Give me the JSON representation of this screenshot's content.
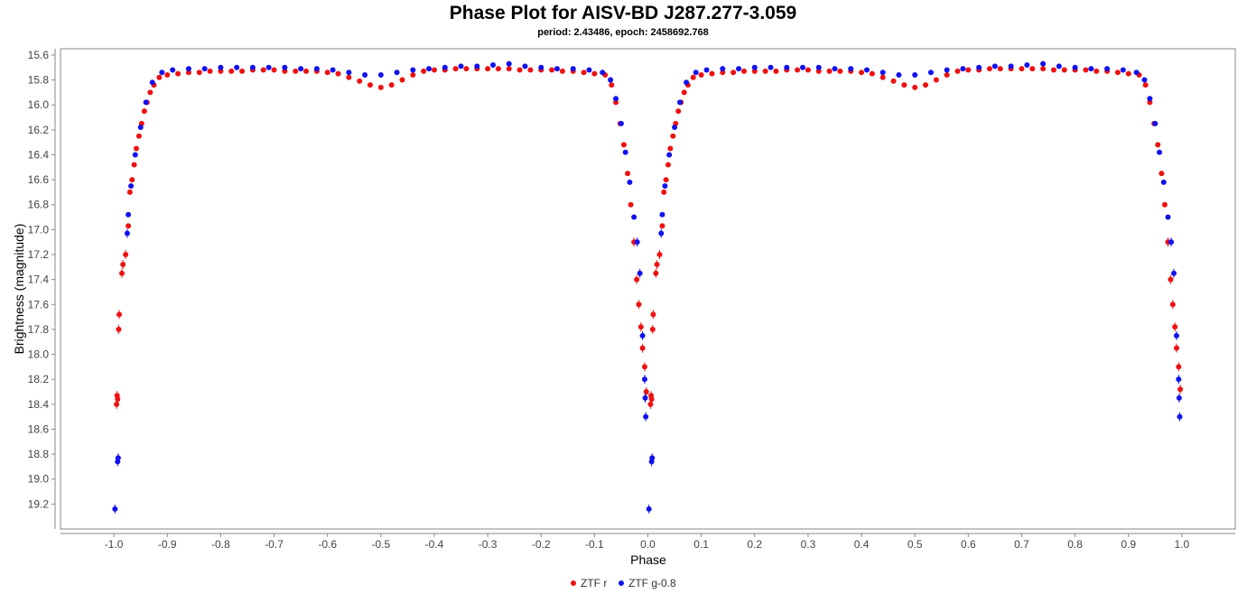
{
  "chart_data": {
    "type": "scatter",
    "title": "Phase Plot for AISV-BD J287.277-3.059",
    "subtitle": "period: 2.43486, epoch: 2458692.768",
    "xlabel": "Phase",
    "ylabel": "Brightness (magnitude)",
    "xlim": [
      -1.1,
      1.1
    ],
    "ylim": [
      15.55,
      19.4
    ],
    "y_inverted": true,
    "x_ticks": [
      -1.0,
      -0.9,
      -0.8,
      -0.7,
      -0.6,
      -0.5,
      -0.4,
      -0.3,
      -0.2,
      -0.1,
      0.0,
      0.1,
      0.2,
      0.3,
      0.4,
      0.5,
      0.6,
      0.7,
      0.8,
      0.9,
      1.0
    ],
    "x_tick_labels": [
      "-1.0",
      "-0.9",
      "-0.8",
      "-0.7",
      "-0.6",
      "-0.5",
      "-0.4",
      "-0.3",
      "-0.2",
      "-0.1",
      "0.0",
      "0.1",
      "0.2",
      "0.3",
      "0.4",
      "0.5",
      "0.6",
      "0.7",
      "0.8",
      "0.9",
      "1.0"
    ],
    "y_ticks": [
      15.6,
      15.8,
      16.0,
      16.2,
      16.4,
      16.6,
      16.8,
      17.0,
      17.2,
      17.4,
      17.6,
      17.8,
      18.0,
      18.2,
      18.4,
      18.6,
      18.8,
      19.0,
      19.2
    ],
    "y_tick_labels": [
      "15.6",
      "15.8",
      "16.0",
      "16.2",
      "16.4",
      "16.6",
      "16.8",
      "17.0",
      "17.2",
      "17.4",
      "17.6",
      "17.8",
      "18.0",
      "18.2",
      "18.4",
      "18.6",
      "18.8",
      "19.0",
      "19.2"
    ],
    "grid": false,
    "legend_position": "bottom-center",
    "series": [
      {
        "name": "ZTF r",
        "color": "#ee1111",
        "points": [
          [
            -0.995,
            18.4
          ],
          [
            -0.994,
            18.33
          ],
          [
            -0.993,
            18.36
          ],
          [
            -0.991,
            17.8
          ],
          [
            -0.99,
            17.68
          ],
          [
            -0.985,
            17.35
          ],
          [
            -0.983,
            17.28
          ],
          [
            -0.978,
            17.2
          ],
          [
            -0.973,
            16.97
          ],
          [
            -0.97,
            16.7
          ],
          [
            -0.966,
            16.6
          ],
          [
            -0.962,
            16.48
          ],
          [
            -0.958,
            16.35
          ],
          [
            -0.953,
            16.25
          ],
          [
            -0.948,
            16.15
          ],
          [
            -0.943,
            16.05
          ],
          [
            -0.938,
            15.98
          ],
          [
            -0.932,
            15.9
          ],
          [
            -0.925,
            15.84
          ],
          [
            -0.915,
            15.78
          ],
          [
            -0.9,
            15.76
          ],
          [
            -0.88,
            15.75
          ],
          [
            -0.86,
            15.74
          ],
          [
            -0.84,
            15.74
          ],
          [
            -0.82,
            15.73
          ],
          [
            -0.8,
            15.73
          ],
          [
            -0.78,
            15.73
          ],
          [
            -0.76,
            15.73
          ],
          [
            -0.74,
            15.72
          ],
          [
            -0.72,
            15.72
          ],
          [
            -0.7,
            15.72
          ],
          [
            -0.68,
            15.73
          ],
          [
            -0.66,
            15.73
          ],
          [
            -0.64,
            15.73
          ],
          [
            -0.62,
            15.73
          ],
          [
            -0.6,
            15.74
          ],
          [
            -0.58,
            15.75
          ],
          [
            -0.56,
            15.78
          ],
          [
            -0.54,
            15.81
          ],
          [
            -0.52,
            15.84
          ],
          [
            -0.5,
            15.86
          ],
          [
            -0.48,
            15.84
          ],
          [
            -0.46,
            15.8
          ],
          [
            -0.44,
            15.76
          ],
          [
            -0.42,
            15.73
          ],
          [
            -0.4,
            15.72
          ],
          [
            -0.38,
            15.72
          ],
          [
            -0.36,
            15.71
          ],
          [
            -0.34,
            15.71
          ],
          [
            -0.32,
            15.71
          ],
          [
            -0.3,
            15.71
          ],
          [
            -0.28,
            15.71
          ],
          [
            -0.26,
            15.71
          ],
          [
            -0.24,
            15.72
          ],
          [
            -0.22,
            15.72
          ],
          [
            -0.2,
            15.72
          ],
          [
            -0.18,
            15.72
          ],
          [
            -0.16,
            15.73
          ],
          [
            -0.14,
            15.73
          ],
          [
            -0.12,
            15.74
          ],
          [
            -0.1,
            15.75
          ],
          [
            -0.08,
            15.76
          ],
          [
            -0.068,
            15.84
          ],
          [
            -0.06,
            15.98
          ],
          [
            -0.052,
            16.15
          ],
          [
            -0.045,
            16.32
          ],
          [
            -0.038,
            16.55
          ],
          [
            -0.032,
            16.8
          ],
          [
            -0.026,
            17.1
          ],
          [
            -0.021,
            17.4
          ],
          [
            -0.017,
            17.6
          ],
          [
            -0.013,
            17.78
          ],
          [
            -0.01,
            17.95
          ],
          [
            -0.006,
            18.1
          ],
          [
            -0.003,
            18.3
          ],
          [
            0.005,
            18.4
          ],
          [
            0.006,
            18.33
          ],
          [
            0.007,
            18.36
          ],
          [
            0.009,
            17.8
          ],
          [
            0.01,
            17.68
          ],
          [
            0.015,
            17.35
          ],
          [
            0.017,
            17.28
          ],
          [
            0.022,
            17.2
          ],
          [
            0.027,
            16.97
          ],
          [
            0.03,
            16.7
          ],
          [
            0.034,
            16.6
          ],
          [
            0.038,
            16.48
          ],
          [
            0.042,
            16.35
          ],
          [
            0.047,
            16.25
          ],
          [
            0.052,
            16.15
          ],
          [
            0.057,
            16.05
          ],
          [
            0.062,
            15.98
          ],
          [
            0.068,
            15.9
          ],
          [
            0.075,
            15.84
          ],
          [
            0.085,
            15.78
          ],
          [
            0.1,
            15.76
          ],
          [
            0.12,
            15.75
          ],
          [
            0.14,
            15.74
          ],
          [
            0.16,
            15.74
          ],
          [
            0.18,
            15.73
          ],
          [
            0.2,
            15.73
          ],
          [
            0.22,
            15.73
          ],
          [
            0.24,
            15.73
          ],
          [
            0.26,
            15.72
          ],
          [
            0.28,
            15.72
          ],
          [
            0.3,
            15.72
          ],
          [
            0.32,
            15.73
          ],
          [
            0.34,
            15.73
          ],
          [
            0.36,
            15.73
          ],
          [
            0.38,
            15.73
          ],
          [
            0.4,
            15.74
          ],
          [
            0.42,
            15.75
          ],
          [
            0.44,
            15.78
          ],
          [
            0.46,
            15.81
          ],
          [
            0.48,
            15.84
          ],
          [
            0.5,
            15.86
          ],
          [
            0.52,
            15.84
          ],
          [
            0.54,
            15.8
          ],
          [
            0.56,
            15.76
          ],
          [
            0.58,
            15.73
          ],
          [
            0.6,
            15.72
          ],
          [
            0.62,
            15.72
          ],
          [
            0.64,
            15.71
          ],
          [
            0.66,
            15.71
          ],
          [
            0.68,
            15.71
          ],
          [
            0.7,
            15.71
          ],
          [
            0.72,
            15.71
          ],
          [
            0.74,
            15.71
          ],
          [
            0.76,
            15.72
          ],
          [
            0.78,
            15.72
          ],
          [
            0.8,
            15.72
          ],
          [
            0.82,
            15.72
          ],
          [
            0.84,
            15.73
          ],
          [
            0.86,
            15.73
          ],
          [
            0.88,
            15.74
          ],
          [
            0.9,
            15.75
          ],
          [
            0.92,
            15.76
          ],
          [
            0.932,
            15.84
          ],
          [
            0.94,
            15.98
          ],
          [
            0.948,
            16.15
          ],
          [
            0.955,
            16.32
          ],
          [
            0.962,
            16.55
          ],
          [
            0.968,
            16.8
          ],
          [
            0.974,
            17.1
          ],
          [
            0.979,
            17.4
          ],
          [
            0.983,
            17.6
          ],
          [
            0.987,
            17.78
          ],
          [
            0.99,
            17.95
          ],
          [
            0.994,
            18.1
          ],
          [
            0.997,
            18.28
          ]
        ]
      },
      {
        "name": "ZTF g-0.8",
        "color": "#1111ee",
        "points": [
          [
            -0.998,
            19.24
          ],
          [
            -0.993,
            18.86
          ],
          [
            -0.992,
            18.83
          ],
          [
            -0.975,
            17.03
          ],
          [
            -0.973,
            16.88
          ],
          [
            -0.968,
            16.65
          ],
          [
            -0.96,
            16.4
          ],
          [
            -0.95,
            16.18
          ],
          [
            -0.94,
            15.98
          ],
          [
            -0.928,
            15.82
          ],
          [
            -0.91,
            15.74
          ],
          [
            -0.89,
            15.72
          ],
          [
            -0.86,
            15.71
          ],
          [
            -0.83,
            15.71
          ],
          [
            -0.8,
            15.7
          ],
          [
            -0.77,
            15.7
          ],
          [
            -0.74,
            15.7
          ],
          [
            -0.71,
            15.7
          ],
          [
            -0.68,
            15.7
          ],
          [
            -0.65,
            15.71
          ],
          [
            -0.62,
            15.71
          ],
          [
            -0.59,
            15.72
          ],
          [
            -0.56,
            15.74
          ],
          [
            -0.53,
            15.76
          ],
          [
            -0.5,
            15.76
          ],
          [
            -0.47,
            15.74
          ],
          [
            -0.44,
            15.72
          ],
          [
            -0.41,
            15.71
          ],
          [
            -0.38,
            15.7
          ],
          [
            -0.35,
            15.69
          ],
          [
            -0.32,
            15.69
          ],
          [
            -0.29,
            15.68
          ],
          [
            -0.26,
            15.67
          ],
          [
            -0.23,
            15.69
          ],
          [
            -0.2,
            15.7
          ],
          [
            -0.17,
            15.71
          ],
          [
            -0.14,
            15.71
          ],
          [
            -0.11,
            15.72
          ],
          [
            -0.085,
            15.74
          ],
          [
            -0.07,
            15.8
          ],
          [
            -0.06,
            15.95
          ],
          [
            -0.05,
            16.15
          ],
          [
            -0.042,
            16.38
          ],
          [
            -0.034,
            16.62
          ],
          [
            -0.026,
            16.9
          ],
          [
            -0.02,
            17.1
          ],
          [
            -0.015,
            17.35
          ],
          [
            -0.01,
            17.85
          ],
          [
            -0.006,
            18.2
          ],
          [
            -0.005,
            18.35
          ],
          [
            -0.004,
            18.5
          ],
          [
            0.002,
            19.24
          ],
          [
            0.007,
            18.86
          ],
          [
            0.008,
            18.83
          ],
          [
            0.025,
            17.03
          ],
          [
            0.027,
            16.88
          ],
          [
            0.032,
            16.65
          ],
          [
            0.04,
            16.4
          ],
          [
            0.05,
            16.18
          ],
          [
            0.06,
            15.98
          ],
          [
            0.072,
            15.82
          ],
          [
            0.09,
            15.74
          ],
          [
            0.11,
            15.72
          ],
          [
            0.14,
            15.71
          ],
          [
            0.17,
            15.71
          ],
          [
            0.2,
            15.7
          ],
          [
            0.23,
            15.7
          ],
          [
            0.26,
            15.7
          ],
          [
            0.29,
            15.7
          ],
          [
            0.32,
            15.7
          ],
          [
            0.35,
            15.71
          ],
          [
            0.38,
            15.71
          ],
          [
            0.41,
            15.72
          ],
          [
            0.44,
            15.74
          ],
          [
            0.47,
            15.76
          ],
          [
            0.5,
            15.76
          ],
          [
            0.53,
            15.74
          ],
          [
            0.56,
            15.72
          ],
          [
            0.59,
            15.71
          ],
          [
            0.62,
            15.7
          ],
          [
            0.65,
            15.69
          ],
          [
            0.68,
            15.69
          ],
          [
            0.71,
            15.68
          ],
          [
            0.74,
            15.67
          ],
          [
            0.77,
            15.69
          ],
          [
            0.8,
            15.7
          ],
          [
            0.83,
            15.71
          ],
          [
            0.86,
            15.71
          ],
          [
            0.89,
            15.72
          ],
          [
            0.915,
            15.74
          ],
          [
            0.93,
            15.8
          ],
          [
            0.94,
            15.95
          ],
          [
            0.95,
            16.15
          ],
          [
            0.958,
            16.38
          ],
          [
            0.966,
            16.62
          ],
          [
            0.974,
            16.9
          ],
          [
            0.98,
            17.1
          ],
          [
            0.985,
            17.35
          ],
          [
            0.99,
            17.85
          ],
          [
            0.994,
            18.2
          ],
          [
            0.995,
            18.35
          ],
          [
            0.996,
            18.5
          ]
        ]
      }
    ]
  }
}
